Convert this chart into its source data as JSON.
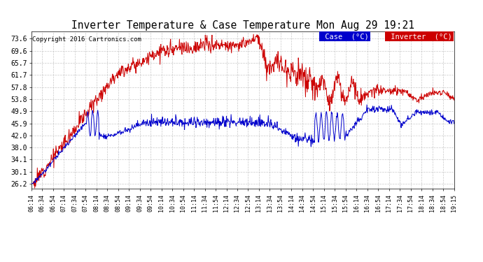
{
  "title": "Inverter Temperature & Case Temperature Mon Aug 29 19:21",
  "copyright": "Copyright 2016 Cartronics.com",
  "yticks": [
    26.2,
    30.1,
    34.1,
    38.0,
    42.0,
    45.9,
    49.9,
    53.8,
    57.8,
    61.7,
    65.7,
    69.6,
    73.6
  ],
  "ylim": [
    24.5,
    76.0
  ],
  "xtick_labels": [
    "06:14",
    "06:34",
    "06:54",
    "07:14",
    "07:34",
    "07:54",
    "08:14",
    "08:34",
    "08:54",
    "09:14",
    "09:34",
    "09:54",
    "10:14",
    "10:34",
    "10:54",
    "11:14",
    "11:34",
    "11:54",
    "12:14",
    "12:34",
    "12:54",
    "13:14",
    "13:34",
    "13:54",
    "14:14",
    "14:34",
    "14:54",
    "15:14",
    "15:34",
    "15:54",
    "16:14",
    "16:34",
    "16:54",
    "17:14",
    "17:34",
    "17:54",
    "18:14",
    "18:34",
    "18:54",
    "19:15"
  ],
  "inverter_color": "#cc0000",
  "case_color": "#0000cc",
  "bg_color": "#ffffff",
  "grid_color": "#bbbbbb",
  "legend_case_bg": "#0000cc",
  "legend_inv_bg": "#cc0000",
  "legend_text_color": "#ffffff"
}
